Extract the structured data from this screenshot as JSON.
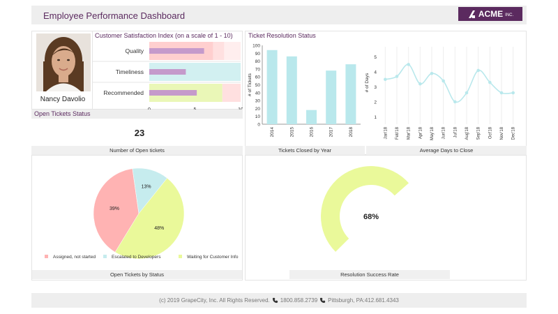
{
  "header": {
    "title": "Employee Performance Dashboard",
    "logo_text": "ACME",
    "logo_suffix": "INC."
  },
  "profile": {
    "name": "Nancy Davolio"
  },
  "csat": {
    "title": "Customer Satisfaction Index (on a scale of 1 - 10)",
    "ticks": [
      "0",
      "5",
      "10"
    ],
    "colors": {
      "Quality": "#ffcfcf",
      "Timeliness": "#d2f0f1",
      "Recommended": "#eaf7b7",
      "bar": "#c59acb"
    }
  },
  "open_tickets": {
    "title": "Open Tickets Status",
    "count": "23",
    "caption": "Number of Open tickets",
    "status_caption": "Open Tickets by Status"
  },
  "ticket_resolution": {
    "title": "Ticket Resolution Status",
    "closed_caption": "Tickets Closed by Year",
    "avg_caption": "Average Days to Close"
  },
  "gauge": {
    "label": "68%",
    "caption": "Resolution Success Rate"
  },
  "footer": {
    "copyright": "(c) 2019 GrapeCity, Inc. All Rights Reserved.",
    "phone": "1800.858.2739",
    "address": "Pittsburgh, PA:412.681.4343"
  },
  "chart_data": [
    {
      "type": "bar",
      "orientation": "horizontal",
      "title": "Customer Satisfaction Index (on a scale of 1 - 10)",
      "categories": [
        "Quality",
        "Timeliness",
        "Recommended"
      ],
      "values": [
        6,
        4,
        5.2
      ],
      "ranges": [
        {
          "name": "Quality",
          "bands": [
            7,
            8.2,
            10
          ]
        },
        {
          "name": "Timeliness",
          "bands": [
            10
          ]
        },
        {
          "name": "Recommended",
          "bands": [
            8,
            10
          ]
        }
      ],
      "xlim": [
        0,
        10
      ]
    },
    {
      "type": "bar",
      "title": "Tickets Closed by Year",
      "categories": [
        "2014",
        "2015",
        "2016",
        "2017",
        "2018"
      ],
      "values": [
        94,
        86,
        18,
        68,
        76
      ],
      "ylabel": "# of Tickets",
      "ylim": [
        0,
        100
      ],
      "yticks": [
        "0",
        "10",
        "20",
        "30",
        "40",
        "50",
        "60",
        "70",
        "80",
        "90",
        "100"
      ],
      "color": "#b9e8ec"
    },
    {
      "type": "line",
      "title": "Average Days to Close",
      "categories": [
        "Jan'18",
        "Feb'18",
        "Mar'18",
        "Apr'18",
        "May'18",
        "Jun'18",
        "Jul'18",
        "Aug'18",
        "Sep'18",
        "Oct'18",
        "Nov'18",
        "Dec'18"
      ],
      "values": [
        3.5,
        3.7,
        4.5,
        3.2,
        3.9,
        3.4,
        2.0,
        2.6,
        4.1,
        3.3,
        2.6,
        2.6
      ],
      "ylabel": "# of Days",
      "ylim": [
        0.5,
        5.5
      ],
      "yticks": [
        "1",
        "2",
        "3",
        "4",
        "5"
      ],
      "color": "#b9e8ec"
    },
    {
      "type": "pie",
      "title": "Open Tickets by Status",
      "labels": [
        "Assigned, not started",
        "Escalated to Developers",
        "Waiting for Customer Info"
      ],
      "values": [
        39,
        13,
        48
      ],
      "display": [
        "39%",
        "13%",
        "48%"
      ],
      "colors": [
        "#ffb3b3",
        "#c6ecee",
        "#eaf99a"
      ]
    },
    {
      "type": "gauge",
      "title": "Resolution Success Rate",
      "value": 68,
      "max": 100,
      "color": "#eaf99a",
      "label": "68%"
    }
  ]
}
